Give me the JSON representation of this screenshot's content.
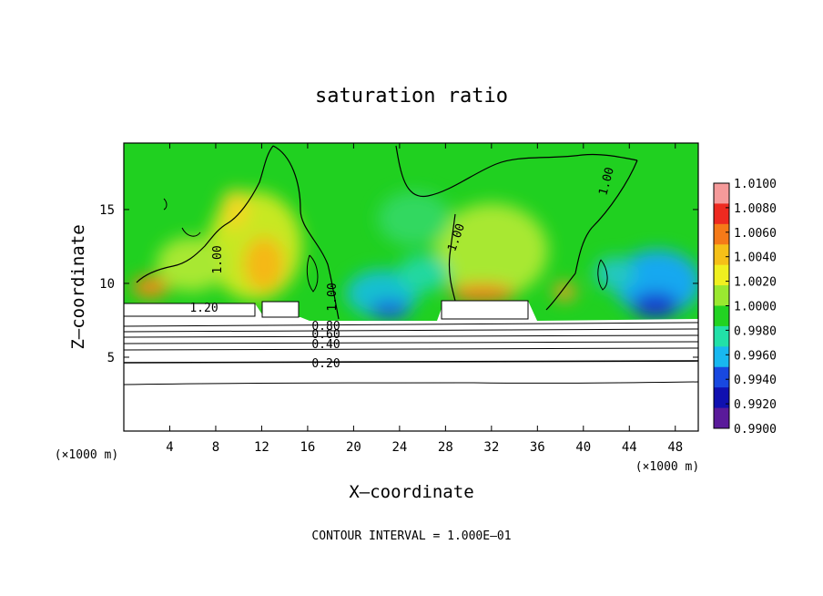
{
  "chart_data": {
    "type": "heatmap",
    "title": "saturation ratio",
    "xlabel": "X–coordinate",
    "ylabel": "Z–coordinate",
    "x_unit": "(×1000 m)",
    "z_unit": "(×1000 m)",
    "xlim": [
      0,
      50
    ],
    "ylim": [
      0,
      19.5
    ],
    "x_ticks": [
      4,
      8,
      12,
      16,
      20,
      24,
      28,
      32,
      36,
      40,
      44,
      48
    ],
    "y_ticks": [
      5,
      10,
      15
    ],
    "colorbar": {
      "levels": [
        "1.0100",
        "1.0080",
        "1.0060",
        "1.0040",
        "1.0020",
        "1.0000",
        "0.9980",
        "0.9960",
        "0.9940",
        "0.9920",
        "0.9900"
      ],
      "colors": [
        "#f59a9a",
        "#ee2a20",
        "#f57a18",
        "#f5c018",
        "#f0f020",
        "#9ae830",
        "#22d322",
        "#22e0a8",
        "#18b8f0",
        "#1848e0",
        "#1010b0",
        "#5a1a9a"
      ]
    },
    "contour_labels": [
      "1.00",
      "1.00",
      "1.00",
      "1.00",
      "1.20",
      "0.80",
      "0.60",
      "0.40",
      "0.20"
    ],
    "contour_interval": "CONTOUR INTERVAL = 1.000E–01"
  }
}
